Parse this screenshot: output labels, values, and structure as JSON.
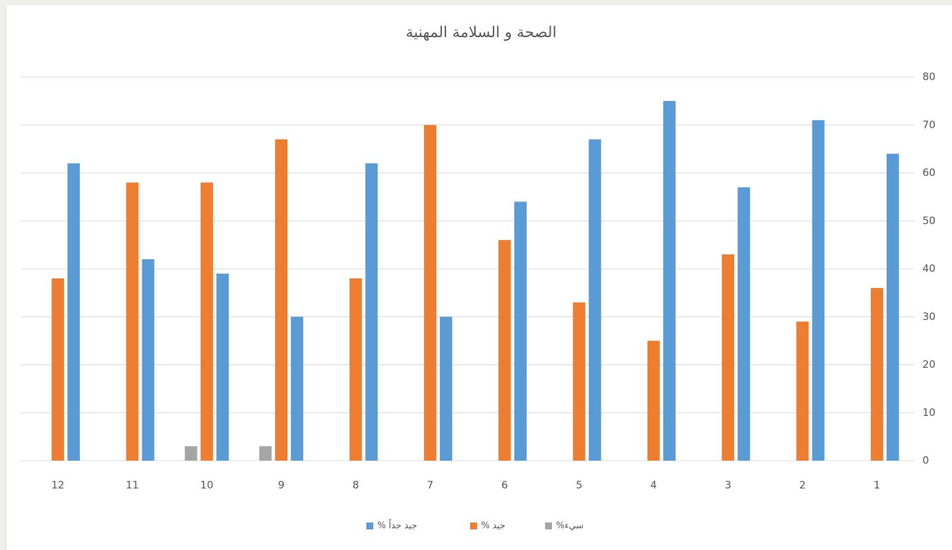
{
  "chart_data": {
    "type": "bar",
    "title": "الصحة و السلامة المهنية",
    "categories": [
      "1",
      "2",
      "3",
      "4",
      "5",
      "6",
      "7",
      "8",
      "9",
      "10",
      "11",
      "12"
    ],
    "series": [
      {
        "name": "جيد جداً %",
        "color": "#5b9bd5",
        "values": [
          64,
          71,
          57,
          75,
          67,
          54,
          30,
          62,
          30,
          39,
          42,
          62
        ]
      },
      {
        "name": "جيد %",
        "color": "#ed7d31",
        "values": [
          36,
          29,
          43,
          25,
          33,
          46,
          70,
          38,
          67,
          58,
          58,
          38
        ]
      },
      {
        "name": "سيء%",
        "color": "#a5a5a5",
        "values": [
          0,
          0,
          0,
          0,
          0,
          0,
          0,
          0,
          3,
          3,
          0,
          0
        ]
      }
    ],
    "ylim": [
      0,
      80
    ],
    "yticks": [
      0,
      10,
      20,
      30,
      40,
      50,
      60,
      70,
      80
    ],
    "grid": true,
    "reverse_x": true,
    "y_axis_side": "right",
    "legend": "bottom"
  }
}
